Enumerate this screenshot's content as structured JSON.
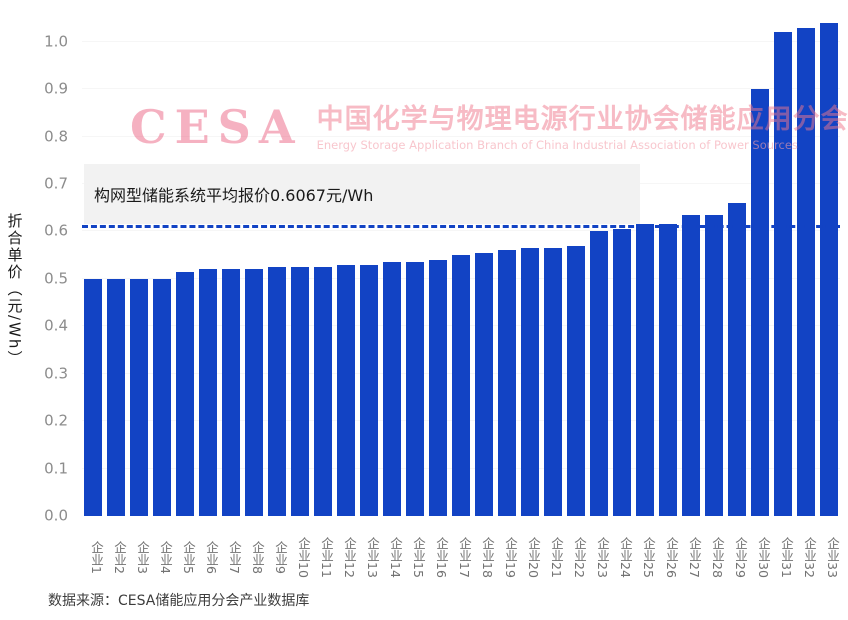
{
  "watermark": {
    "logo": "CESA",
    "title_cn": "中国化学与物理电源行业协会储能应用分会",
    "title_en": "Energy Storage Application Branch of China Industrial Association of Power Sources"
  },
  "annotation": {
    "text": "构网型储能系统平均报价0.6067元/Wh"
  },
  "footer": {
    "source": "数据来源：CESA储能应用分会产业数据库"
  },
  "colors": {
    "bar": "#1243c4",
    "average_line": "#1243c4",
    "watermark_pink": "#e85276"
  },
  "chart_data": {
    "type": "bar",
    "title": "",
    "xlabel": "",
    "ylabel": "折合单价（元/Wh）",
    "ylim": [
      0,
      1.05
    ],
    "yticks": [
      0.0,
      0.1,
      0.2,
      0.3,
      0.4,
      0.5,
      0.6,
      0.7,
      0.8,
      0.9,
      1.0
    ],
    "categories": [
      "企业1",
      "企业2",
      "企业3",
      "企业4",
      "企业5",
      "企业6",
      "企业7",
      "企业8",
      "企业9",
      "企业10",
      "企业11",
      "企业12",
      "企业13",
      "企业14",
      "企业15",
      "企业16",
      "企业17",
      "企业18",
      "企业19",
      "企业20",
      "企业21",
      "企业22",
      "企业23",
      "企业24",
      "企业25",
      "企业26",
      "企业27",
      "企业28",
      "企业29",
      "企业30",
      "企业31",
      "企业32",
      "企业33"
    ],
    "values": [
      0.5,
      0.5,
      0.5,
      0.5,
      0.515,
      0.52,
      0.52,
      0.52,
      0.525,
      0.525,
      0.525,
      0.53,
      0.53,
      0.535,
      0.535,
      0.54,
      0.55,
      0.555,
      0.56,
      0.565,
      0.565,
      0.57,
      0.6,
      0.605,
      0.615,
      0.615,
      0.635,
      0.635,
      0.66,
      0.9,
      1.02,
      1.03,
      1.04
    ],
    "average_line": 0.6067,
    "grid": false,
    "legend_position": "none"
  }
}
